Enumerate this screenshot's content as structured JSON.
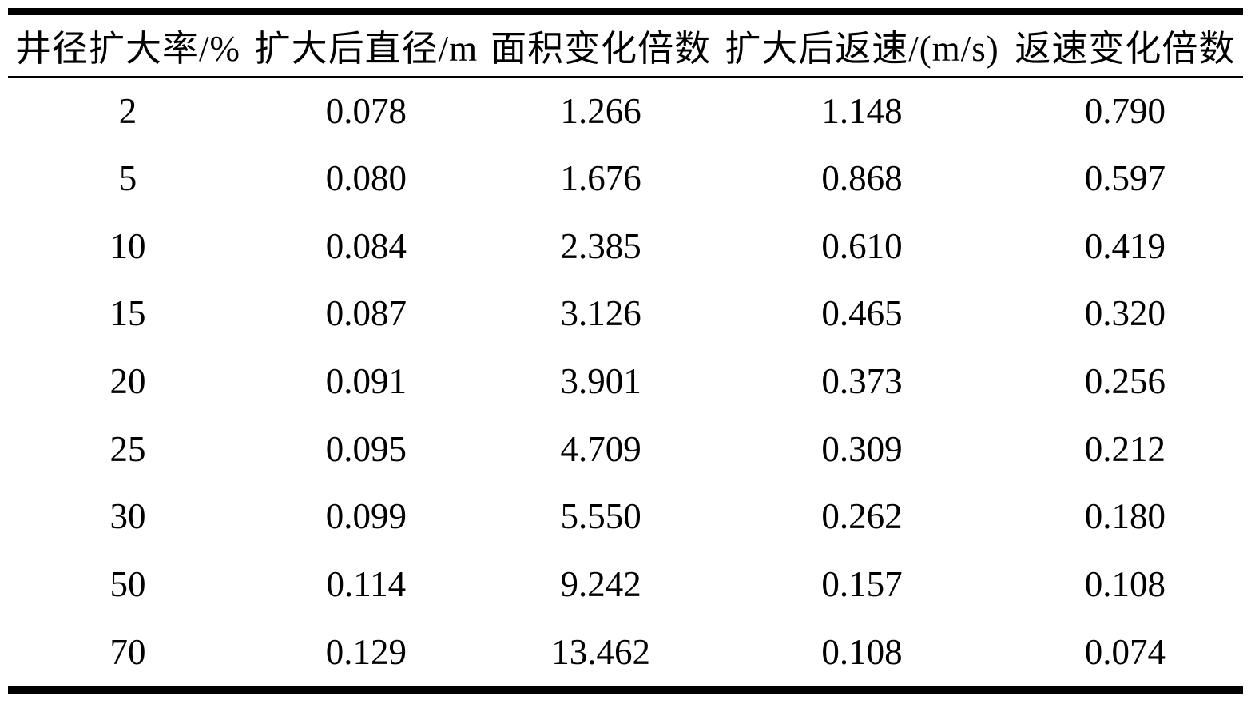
{
  "table": {
    "columns": [
      "井径扩大率/%",
      "扩大后直径/m",
      "面积变化倍数",
      "扩大后返速/(m/s)",
      "返速变化倍数"
    ],
    "rows": [
      [
        "2",
        "0.078",
        "1.266",
        "1.148",
        "0.790"
      ],
      [
        "5",
        "0.080",
        "1.676",
        "0.868",
        "0.597"
      ],
      [
        "10",
        "0.084",
        "2.385",
        "0.610",
        "0.419"
      ],
      [
        "15",
        "0.087",
        "3.126",
        "0.465",
        "0.320"
      ],
      [
        "20",
        "0.091",
        "3.901",
        "0.373",
        "0.256"
      ],
      [
        "25",
        "0.095",
        "4.709",
        "0.309",
        "0.212"
      ],
      [
        "30",
        "0.099",
        "5.550",
        "0.262",
        "0.180"
      ],
      [
        "50",
        "0.114",
        "9.242",
        "0.157",
        "0.108"
      ],
      [
        "70",
        "0.129",
        "13.462",
        "0.108",
        "0.074"
      ]
    ]
  },
  "chart_data": {
    "type": "table",
    "title": "",
    "columns": [
      "井径扩大率/%",
      "扩大后直径/m",
      "面积变化倍数",
      "扩大后返速/(m/s)",
      "返速变化倍数"
    ],
    "rows": [
      [
        2,
        0.078,
        1.266,
        1.148,
        0.79
      ],
      [
        5,
        0.08,
        1.676,
        0.868,
        0.597
      ],
      [
        10,
        0.084,
        2.385,
        0.61,
        0.419
      ],
      [
        15,
        0.087,
        3.126,
        0.465,
        0.32
      ],
      [
        20,
        0.091,
        3.901,
        0.373,
        0.256
      ],
      [
        25,
        0.095,
        4.709,
        0.309,
        0.212
      ],
      [
        30,
        0.099,
        5.55,
        0.262,
        0.18
      ],
      [
        50,
        0.114,
        9.242,
        0.157,
        0.108
      ],
      [
        70,
        0.129,
        13.462,
        0.108,
        0.074
      ]
    ],
    "colors": {
      "text": "#000000",
      "background": "#ffffff",
      "rules": "#000000"
    }
  }
}
